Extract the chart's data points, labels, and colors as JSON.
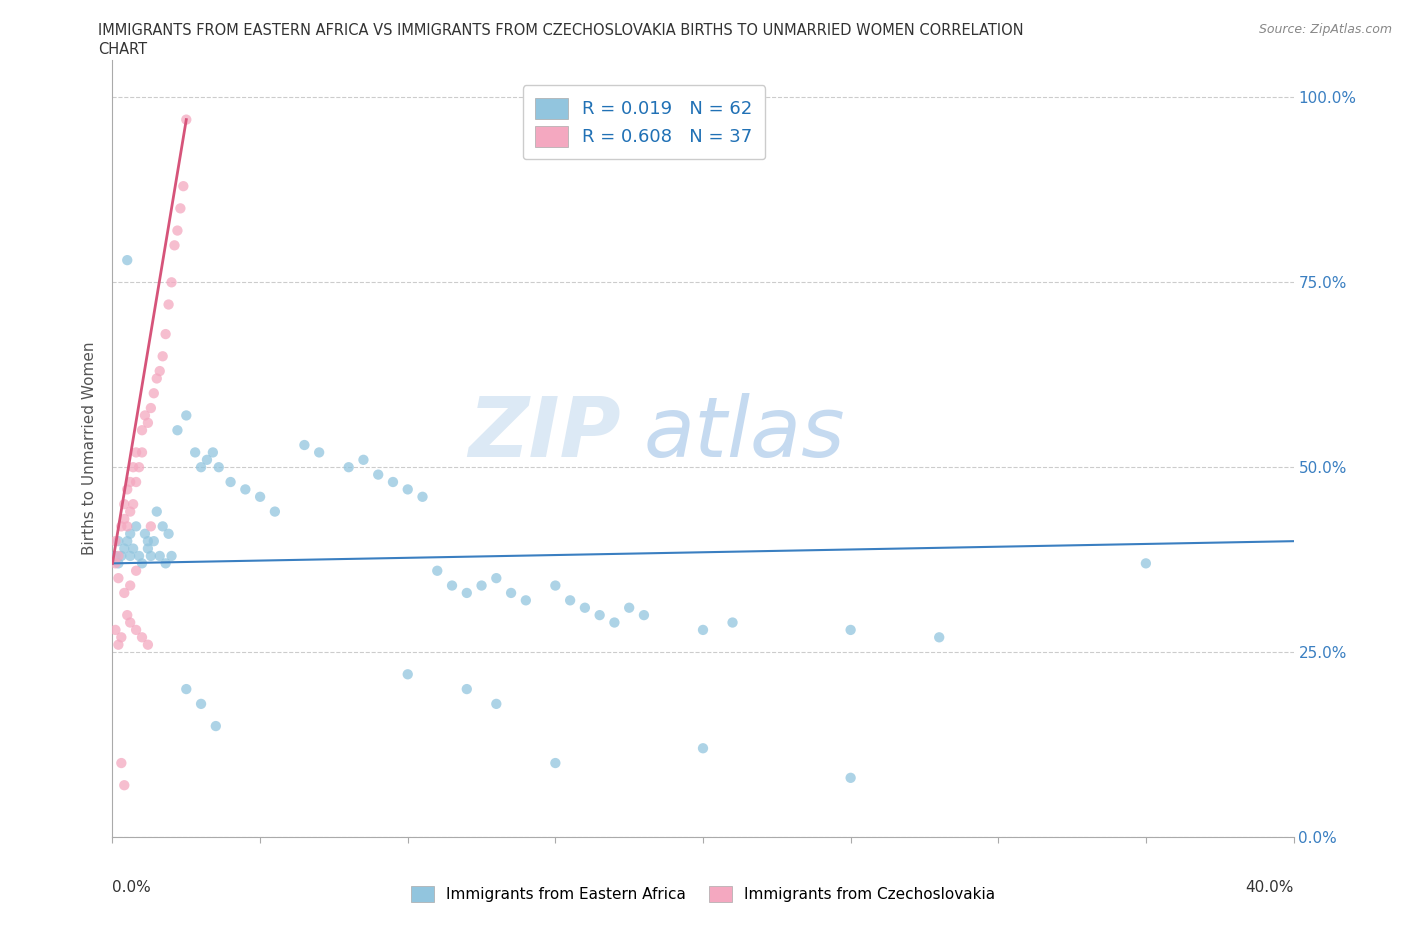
{
  "title_line1": "IMMIGRANTS FROM EASTERN AFRICA VS IMMIGRANTS FROM CZECHOSLOVAKIA BIRTHS TO UNMARRIED WOMEN CORRELATION",
  "title_line2": "CHART",
  "source": "Source: ZipAtlas.com",
  "ylabel": "Births to Unmarried Women",
  "xlim": [
    0.0,
    0.4
  ],
  "ylim": [
    0.0,
    1.05
  ],
  "blue_color": "#92c5de",
  "pink_color": "#f4a8c0",
  "blue_line_color": "#3a7fc1",
  "pink_line_color": "#d6547a",
  "R_blue": 0.019,
  "N_blue": 62,
  "R_pink": 0.608,
  "N_pink": 37,
  "legend_label_blue": "Immigrants from Eastern Africa",
  "legend_label_pink": "Immigrants from Czechoslovakia",
  "blue_x": [
    0.001,
    0.002,
    0.002,
    0.003,
    0.004,
    0.005,
    0.006,
    0.006,
    0.007,
    0.008,
    0.009,
    0.01,
    0.011,
    0.012,
    0.012,
    0.013,
    0.014,
    0.015,
    0.016,
    0.017,
    0.018,
    0.019,
    0.02,
    0.022,
    0.025,
    0.028,
    0.03,
    0.032,
    0.034,
    0.036,
    0.04,
    0.045,
    0.05,
    0.055,
    0.065,
    0.07,
    0.08,
    0.085,
    0.09,
    0.095,
    0.1,
    0.105,
    0.11,
    0.115,
    0.12,
    0.125,
    0.13,
    0.135,
    0.14,
    0.15,
    0.155,
    0.16,
    0.165,
    0.17,
    0.175,
    0.18,
    0.2,
    0.21,
    0.25,
    0.28,
    0.35,
    0.005
  ],
  "blue_y": [
    0.38,
    0.37,
    0.4,
    0.38,
    0.39,
    0.4,
    0.38,
    0.41,
    0.39,
    0.42,
    0.38,
    0.37,
    0.41,
    0.39,
    0.4,
    0.38,
    0.4,
    0.44,
    0.38,
    0.42,
    0.37,
    0.41,
    0.38,
    0.55,
    0.57,
    0.52,
    0.5,
    0.51,
    0.52,
    0.5,
    0.48,
    0.47,
    0.46,
    0.44,
    0.53,
    0.52,
    0.5,
    0.51,
    0.49,
    0.48,
    0.47,
    0.46,
    0.36,
    0.34,
    0.33,
    0.34,
    0.35,
    0.33,
    0.32,
    0.34,
    0.32,
    0.31,
    0.3,
    0.29,
    0.31,
    0.3,
    0.28,
    0.29,
    0.28,
    0.27,
    0.37,
    0.78
  ],
  "pink_x": [
    0.001,
    0.001,
    0.002,
    0.002,
    0.003,
    0.004,
    0.004,
    0.005,
    0.005,
    0.006,
    0.006,
    0.007,
    0.007,
    0.008,
    0.008,
    0.009,
    0.01,
    0.01,
    0.011,
    0.012,
    0.013,
    0.014,
    0.015,
    0.016,
    0.017,
    0.018,
    0.019,
    0.02,
    0.021,
    0.022,
    0.023,
    0.024,
    0.025,
    0.013,
    0.008,
    0.006,
    0.004
  ],
  "pink_y": [
    0.37,
    0.4,
    0.35,
    0.38,
    0.42,
    0.43,
    0.45,
    0.42,
    0.47,
    0.44,
    0.48,
    0.45,
    0.5,
    0.48,
    0.52,
    0.5,
    0.52,
    0.55,
    0.57,
    0.56,
    0.58,
    0.6,
    0.62,
    0.63,
    0.65,
    0.68,
    0.72,
    0.75,
    0.8,
    0.82,
    0.85,
    0.88,
    0.97,
    0.42,
    0.36,
    0.34,
    0.33
  ],
  "pink_extra_x": [
    0.001,
    0.002,
    0.003,
    0.005,
    0.006,
    0.008,
    0.01,
    0.012,
    0.003,
    0.004
  ],
  "pink_extra_y": [
    0.28,
    0.26,
    0.27,
    0.3,
    0.29,
    0.28,
    0.27,
    0.26,
    0.1,
    0.07
  ],
  "blue_extra_x": [
    0.025,
    0.03,
    0.035,
    0.1,
    0.12,
    0.13,
    0.15,
    0.2,
    0.25
  ],
  "blue_extra_y": [
    0.2,
    0.18,
    0.15,
    0.22,
    0.2,
    0.18,
    0.1,
    0.12,
    0.08
  ]
}
